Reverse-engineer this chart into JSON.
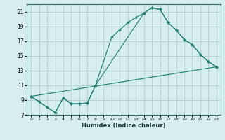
{
  "xlabel": "Humidex (Indice chaleur)",
  "bg_color": "#d6eeee",
  "grid_color": "#b0cccc",
  "line_color": "#1a7a6e",
  "xlim": [
    -0.5,
    23.5
  ],
  "ylim": [
    7,
    22
  ],
  "xticks": [
    0,
    1,
    2,
    3,
    4,
    5,
    6,
    7,
    8,
    9,
    10,
    11,
    12,
    13,
    14,
    15,
    16,
    17,
    18,
    19,
    20,
    21,
    22,
    23
  ],
  "yticks": [
    7,
    9,
    11,
    13,
    15,
    17,
    19,
    21
  ],
  "line1_x": [
    0,
    1,
    2,
    3,
    4,
    5,
    6,
    7,
    8,
    10,
    11,
    12,
    13,
    14,
    15,
    16,
    17,
    18,
    19,
    20,
    21,
    22,
    23
  ],
  "line1_y": [
    9.5,
    8.8,
    8.0,
    7.3,
    9.3,
    8.5,
    8.5,
    8.6,
    11.0,
    17.5,
    18.5,
    19.5,
    20.2,
    20.8,
    21.5,
    21.3,
    19.5,
    18.5,
    17.2,
    16.5,
    15.2,
    14.2,
    13.5
  ],
  "line2_x": [
    0,
    3,
    4,
    5,
    6,
    7,
    8,
    14,
    15,
    16,
    17,
    18,
    19,
    20,
    21,
    22,
    23
  ],
  "line2_y": [
    9.5,
    7.3,
    9.3,
    8.5,
    8.5,
    8.6,
    11.0,
    20.8,
    21.5,
    21.3,
    19.5,
    18.5,
    17.2,
    16.5,
    15.2,
    14.2,
    13.5
  ],
  "line3_x": [
    0,
    23
  ],
  "line3_y": [
    9.5,
    13.5
  ]
}
